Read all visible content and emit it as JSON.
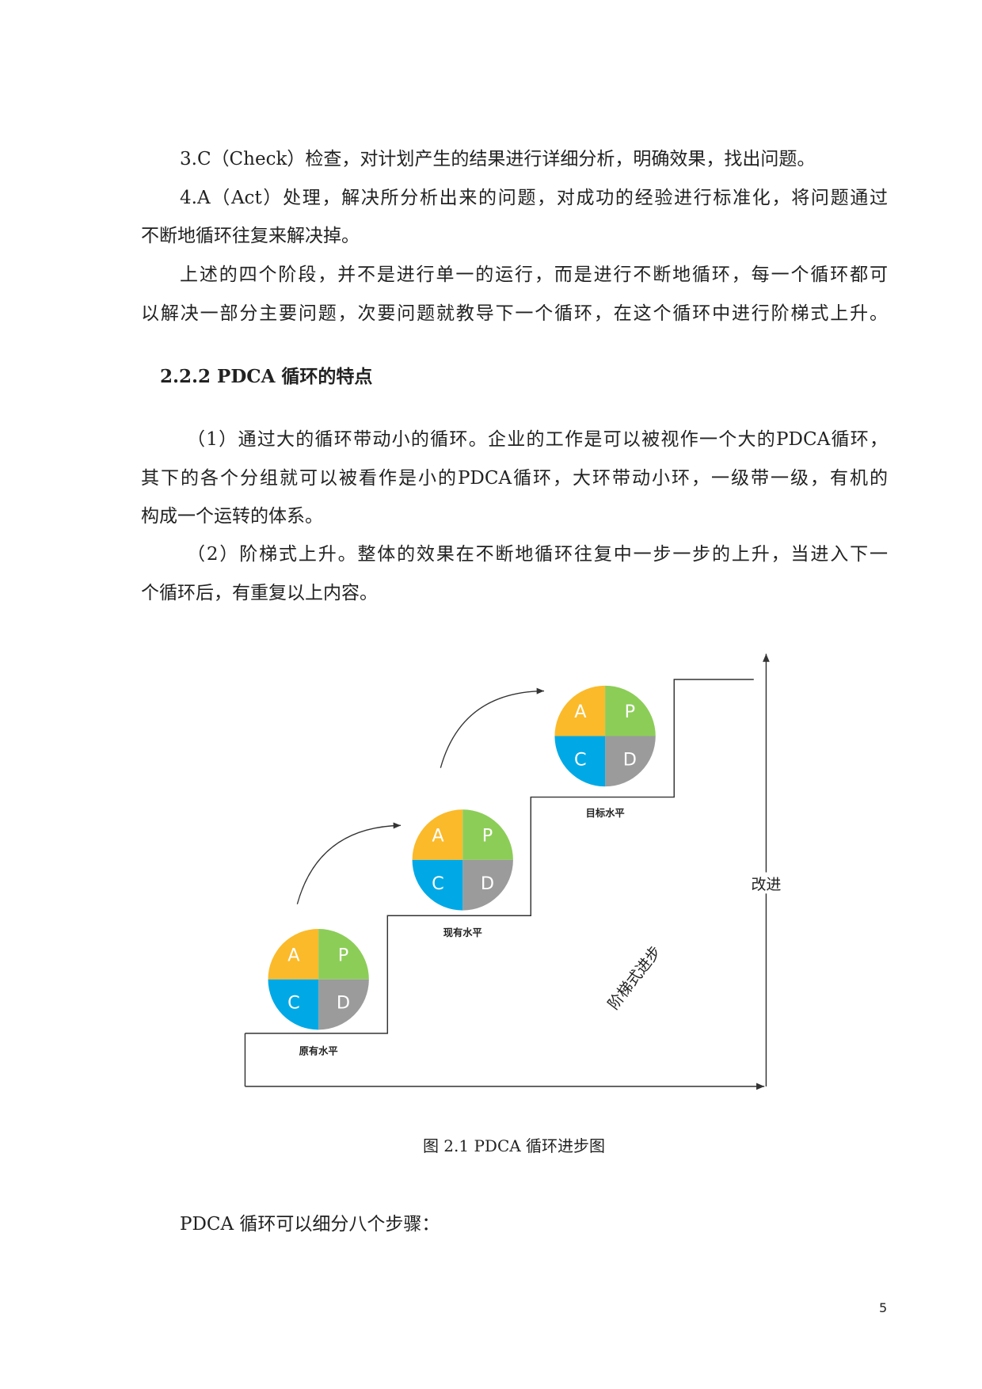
{
  "paragraphs": {
    "p1": "3.C（Check）检查，对计划产生的结果进行详细分析，明确效果，找出问题。",
    "p2_l1": "4.A（Act）处理，解决所分析出来的问题，对成功的经验进行标准化，将问题通过",
    "p2_l2": "不断地循环往复来解决掉。",
    "p3_l1": "上述的四个阶段，并不是进行单一的运行，而是进行不断地循环，每一个循环都可",
    "p3_l2": "以解决一部分主要问题，次要问题就教导下一个循环，在这个循环中进行阶梯式上升。",
    "heading": "2.2.2  PDCA 循环的特点",
    "p4_l1": "（1）通过大的循环带动小的循环。企业的工作是可以被视作一个大的PDCA循环，",
    "p4_l2": "其下的各个分组就可以被看作是小的PDCA循环，大环带动小环，一级带一级，有机的",
    "p4_l3": "构成一个运转的体系。",
    "p5_l1": "（2）阶梯式上升。整体的效果在不断地循环往复中一步一步的上升，当进入下一",
    "p5_l2": "个循环后，有重复以上内容。",
    "p6": "PDCA 循环可以细分八个步骤："
  },
  "figure": {
    "caption": "图 2.1 PDCA 循环进步图",
    "quadrants": {
      "a": "A",
      "p": "P",
      "c": "C",
      "d": "D"
    },
    "colors": {
      "a": "#FBBA2A",
      "p": "#8CCD58",
      "c": "#00A9E6",
      "d": "#9B9B9B"
    },
    "levels": [
      "原有水平",
      "现有水平",
      "目标水平"
    ],
    "y_axis_label": "改进",
    "diagonal_label": "阶梯式进步"
  },
  "page_number": "5"
}
